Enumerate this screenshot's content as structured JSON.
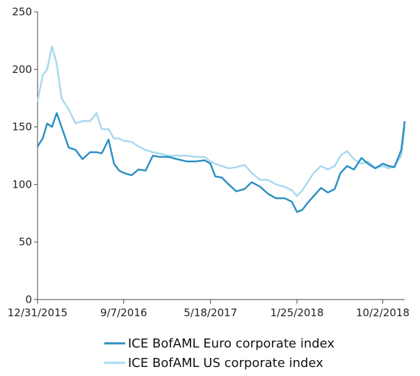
{
  "chart_data": {
    "type": "line",
    "title": "",
    "xlabel": "",
    "ylabel": "",
    "ylim": [
      0,
      250
    ],
    "yticks": [
      0,
      50,
      100,
      150,
      200,
      250
    ],
    "xticks": [
      "12/31/2015",
      "9/7/2016",
      "5/18/2017",
      "1/25/2018",
      "10/2/2018"
    ],
    "grid": false,
    "legend_position": "bottom",
    "series": [
      {
        "name": "ICE BofAML Euro corporate index",
        "color": "#2a8fc1",
        "x": [
          "12/31/2015",
          "1/15/2016",
          "1/28/2016",
          "2/11/2016",
          "2/25/2016",
          "3/10/2016",
          "3/31/2016",
          "4/20/2016",
          "5/10/2016",
          "6/1/2016",
          "6/20/2016",
          "7/5/2016",
          "7/25/2016",
          "8/10/2016",
          "8/25/2016",
          "9/7/2016",
          "9/30/2016",
          "10/20/2016",
          "11/10/2016",
          "12/1/2016",
          "12/20/2016",
          "1/15/2017",
          "2/10/2017",
          "3/10/2017",
          "4/5/2017",
          "5/1/2017",
          "5/18/2017",
          "6/1/2017",
          "6/20/2017",
          "7/10/2017",
          "8/1/2017",
          "8/25/2017",
          "9/15/2017",
          "10/10/2017",
          "11/1/2017",
          "11/25/2017",
          "12/20/2017",
          "1/10/2018",
          "1/25/2018",
          "2/10/2018",
          "2/25/2018",
          "3/15/2018",
          "4/5/2018",
          "4/25/2018",
          "5/15/2018",
          "6/1/2018",
          "6/20/2018",
          "7/10/2018",
          "8/1/2018",
          "8/20/2018",
          "9/10/2018",
          "10/2/2018",
          "10/20/2018",
          "11/5/2018",
          "11/25/2018",
          "12/5/2018"
        ],
        "y": [
          133,
          140,
          153,
          150,
          162,
          150,
          132,
          130,
          122,
          128,
          128,
          127,
          139,
          118,
          112,
          110,
          108,
          113,
          112,
          125,
          124,
          124,
          122,
          120,
          120,
          121,
          118,
          107,
          106,
          100,
          94,
          96,
          102,
          98,
          92,
          88,
          88,
          85,
          76,
          78,
          84,
          90,
          97,
          93,
          96,
          110,
          116,
          113,
          123,
          118,
          114,
          118,
          116,
          115,
          130,
          155
        ]
      },
      {
        "name": "ICE BofAML US corporate index",
        "color": "#a6d9ef",
        "x": [
          "12/31/2015",
          "1/15/2016",
          "1/28/2016",
          "2/11/2016",
          "2/25/2016",
          "3/10/2016",
          "3/31/2016",
          "4/20/2016",
          "5/10/2016",
          "6/1/2016",
          "6/20/2016",
          "7/5/2016",
          "7/25/2016",
          "8/10/2016",
          "8/25/2016",
          "9/7/2016",
          "9/30/2016",
          "10/20/2016",
          "11/10/2016",
          "12/1/2016",
          "12/20/2016",
          "1/15/2017",
          "2/10/2017",
          "3/10/2017",
          "4/5/2017",
          "5/1/2017",
          "5/18/2017",
          "6/1/2017",
          "6/20/2017",
          "7/10/2017",
          "8/1/2017",
          "8/25/2017",
          "9/15/2017",
          "10/10/2017",
          "11/1/2017",
          "11/25/2017",
          "12/20/2017",
          "1/10/2018",
          "1/25/2018",
          "2/10/2018",
          "2/25/2018",
          "3/15/2018",
          "4/5/2018",
          "4/25/2018",
          "5/15/2018",
          "6/1/2018",
          "6/20/2018",
          "7/10/2018",
          "8/1/2018",
          "8/20/2018",
          "9/10/2018",
          "10/2/2018",
          "10/20/2018",
          "11/5/2018",
          "11/25/2018",
          "12/5/2018"
        ],
        "y": [
          172,
          195,
          200,
          220,
          205,
          175,
          165,
          153,
          155,
          155,
          162,
          148,
          148,
          140,
          140,
          138,
          137,
          133,
          130,
          128,
          127,
          125,
          125,
          125,
          124,
          124,
          120,
          118,
          116,
          114,
          115,
          117,
          110,
          104,
          104,
          100,
          98,
          95,
          90,
          95,
          102,
          110,
          116,
          113,
          116,
          125,
          129,
          122,
          118,
          120,
          114,
          116,
          114,
          116,
          125,
          150
        ]
      }
    ]
  }
}
